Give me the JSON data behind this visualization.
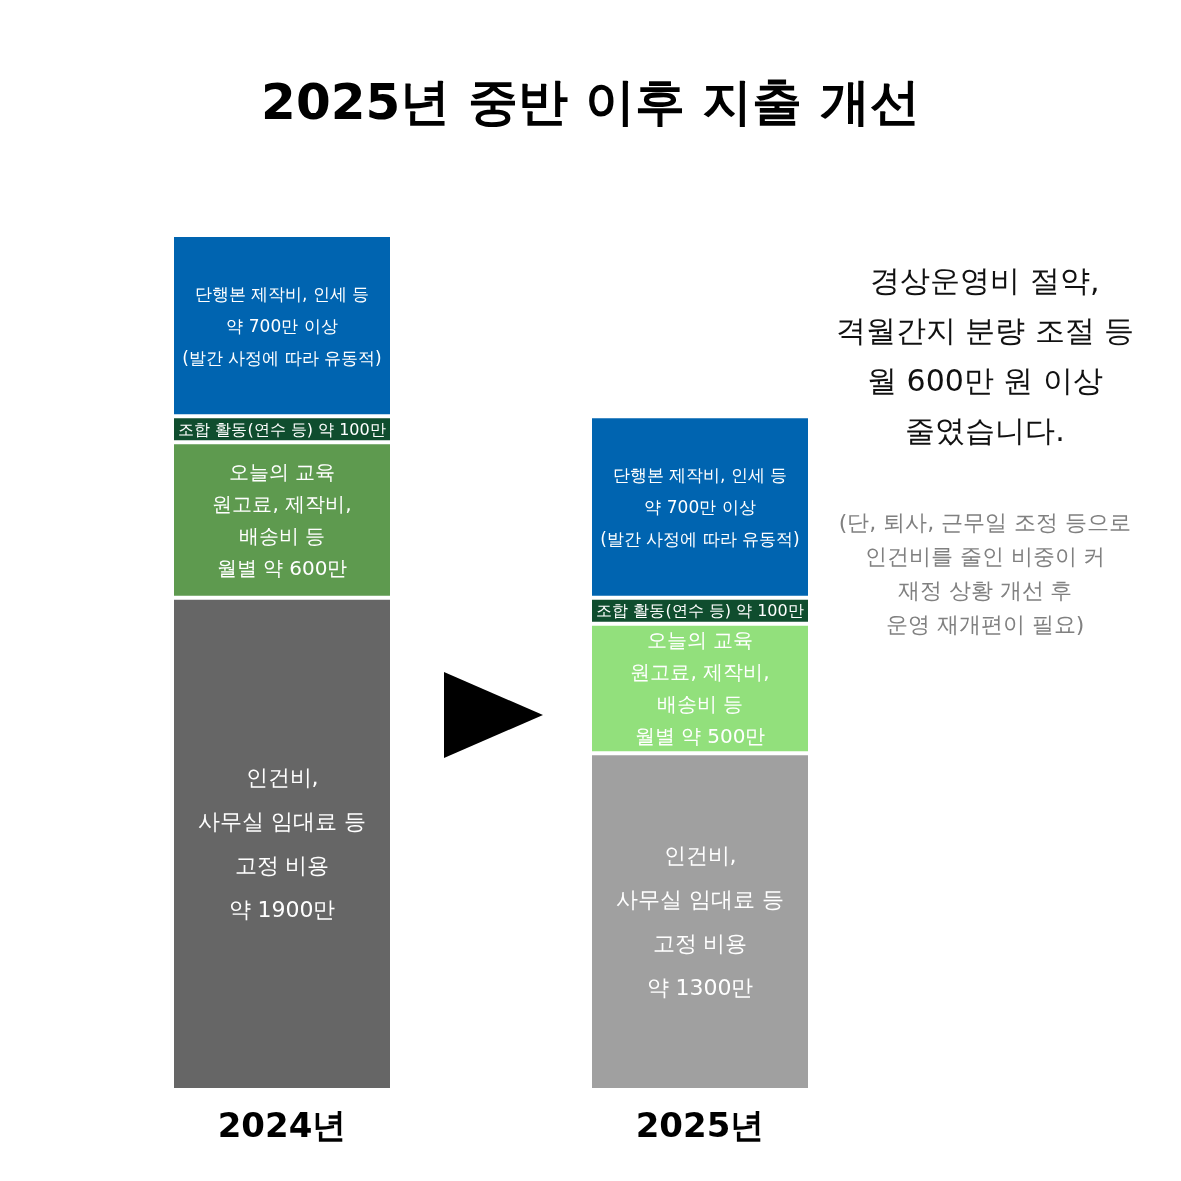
{
  "chart_data": {
    "type": "bar",
    "title": "2025년 중반 이후 지출 개선",
    "categories": [
      "2024년",
      "2025년"
    ],
    "stacked": true,
    "series": [
      {
        "colors": [
          "#666666",
          "#a0a0a0"
        ],
        "values": [
          1900,
          1300
        ],
        "value_labels": [
          "인건비,\n사무실 임대료 등\n고정 비용\n약 1900만",
          "인건비,\n사무실 임대료 등\n고정 비용\n약 1300만"
        ]
      },
      {
        "colors": [
          "#5e9a4f",
          "#92e07c"
        ],
        "values": [
          600,
          500
        ],
        "value_labels": [
          "오늘의 교육\n원고료, 제작비,\n배송비 등\n월별 약 600만",
          "오늘의 교육\n원고료, 제작비,\n배송비 등\n월별 약 500만"
        ]
      },
      {
        "colors": [
          "#0f4d2e",
          "#0f4d2e"
        ],
        "values": [
          100,
          100
        ],
        "value_labels": [
          "조합 활동(연수 등) 약 100만",
          "조합 활동(연수 등) 약 100만"
        ]
      },
      {
        "colors": [
          "#0064b0",
          "#0064b0"
        ],
        "values": [
          700,
          700
        ],
        "value_labels": [
          "단행본 제작비, 인세 등\n약 700만 이상\n(발간 사정에 따라 유동적)",
          "단행본 제작비, 인세 등\n약 700만 이상\n(발간 사정에 따라 유동적)"
        ]
      }
    ],
    "annotations": [
      "경상운영비 절약,\n격월간지 분량 조절 등\n월 600만 원 이상\n줄였습니다.",
      "(단, 퇴사, 근무일 조정 등으로\n인건비를 줄인 비중이 커\n재정 상황 개선 후\n운영 재개편이 필요)"
    ]
  }
}
